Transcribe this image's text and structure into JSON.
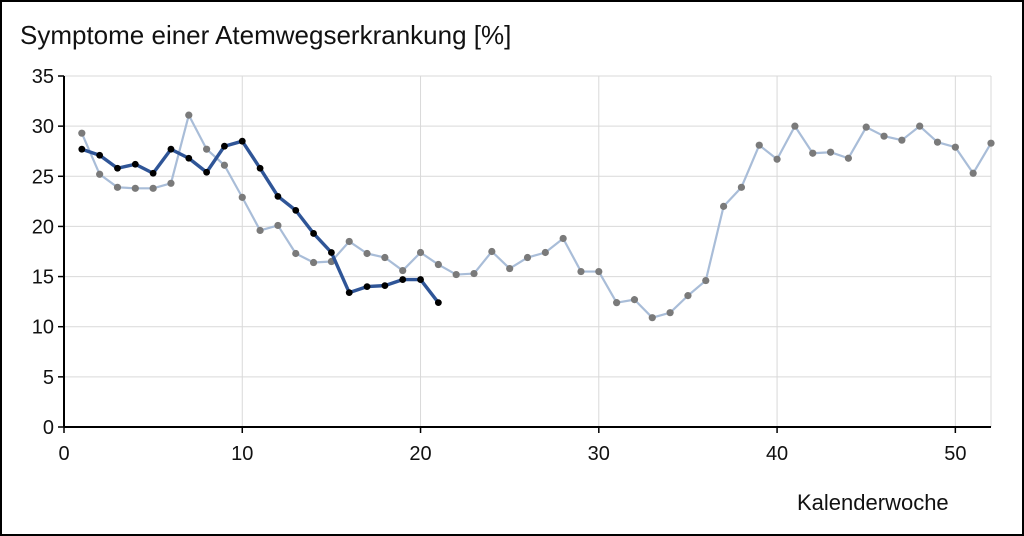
{
  "chart_data": {
    "type": "line",
    "title": "Symptome einer Atemwegserkrankung [%]",
    "xlabel": "Kalenderwoche",
    "ylabel": "",
    "xlim": [
      0,
      52
    ],
    "ylim": [
      0,
      35
    ],
    "x_ticks": [
      0,
      10,
      20,
      30,
      40,
      50
    ],
    "y_ticks": [
      0,
      5,
      10,
      15,
      20,
      25,
      30,
      35
    ],
    "grid": true,
    "colors": {
      "previous": "#a9bdd8",
      "previous_marker": "#7a7a7a",
      "current": "#2f5597",
      "current_marker": "#000000",
      "grid": "#d9d9d9"
    },
    "series": [
      {
        "x": [
          1,
          2,
          3,
          4,
          5,
          6,
          7,
          8,
          9,
          10,
          11,
          12,
          13,
          14,
          15,
          16,
          17,
          18,
          19,
          20,
          21,
          22,
          23,
          24,
          25,
          26,
          27,
          28,
          29,
          30,
          31,
          32,
          33,
          34,
          35,
          36,
          37,
          38,
          39,
          40,
          41,
          42,
          43,
          44,
          45,
          46,
          47,
          48,
          49,
          50,
          51,
          52
        ],
        "values": [
          29.3,
          25.2,
          23.9,
          23.8,
          23.8,
          24.3,
          31.1,
          27.7,
          26.1,
          22.9,
          19.6,
          20.1,
          17.3,
          16.4,
          16.5,
          18.5,
          17.3,
          16.9,
          15.6,
          17.4,
          16.2,
          15.2,
          15.3,
          17.5,
          15.8,
          16.9,
          17.4,
          18.8,
          15.5,
          15.5,
          12.4,
          12.7,
          10.9,
          11.4,
          13.1,
          14.6,
          22.0,
          23.9,
          28.1,
          26.7,
          30.0,
          27.3,
          27.4,
          26.8,
          29.9,
          29.0,
          28.6,
          30.0,
          28.4,
          27.9,
          25.3,
          28.3
        ]
      },
      {
        "x": [
          1,
          2,
          3,
          4,
          5,
          6,
          7,
          8,
          9,
          10,
          11,
          12,
          13,
          14,
          15,
          16,
          17,
          18,
          19,
          20,
          21
        ],
        "values": [
          27.7,
          27.1,
          25.8,
          26.2,
          25.3,
          27.7,
          26.8,
          25.4,
          28.0,
          28.5,
          25.8,
          23.0,
          21.6,
          19.3,
          17.4,
          13.4,
          14.0,
          14.1,
          14.7,
          14.7,
          12.4
        ]
      }
    ]
  }
}
